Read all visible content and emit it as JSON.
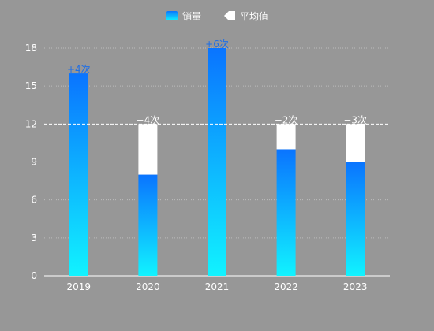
{
  "chart_data": {
    "type": "bar",
    "categories": [
      "2019",
      "2020",
      "2021",
      "2022",
      "2023"
    ],
    "series": [
      {
        "name": "销量",
        "values": [
          16,
          8,
          18,
          10,
          9
        ]
      }
    ],
    "average": {
      "name": "平均值",
      "value": 12
    },
    "diff_labels": [
      "+4次",
      "−4次",
      "+6次",
      "−2次",
      "−3次"
    ],
    "yticks": [
      "0",
      "3",
      "6",
      "9",
      "12",
      "15",
      "18"
    ],
    "ylim": [
      0,
      18
    ],
    "grid": true,
    "legend_position": "top-center",
    "colors": {
      "bar_top": "#0a74ff",
      "bar_bottom": "#11f3ff",
      "avg_fill": "#ffffff",
      "positive_label": "#1f6fe6",
      "negative_label": "#ffffff",
      "text": "#ffffff",
      "grid": "#bdbdbd",
      "axis": "#ffffff"
    }
  }
}
